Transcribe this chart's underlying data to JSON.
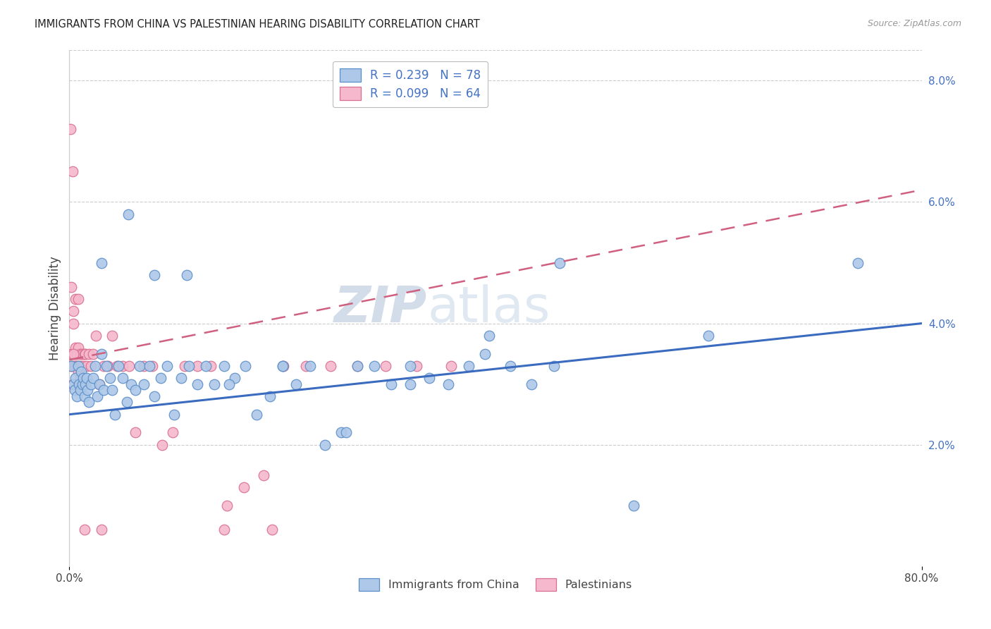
{
  "title": "IMMIGRANTS FROM CHINA VS PALESTINIAN HEARING DISABILITY CORRELATION CHART",
  "source": "Source: ZipAtlas.com",
  "ylabel": "Hearing Disability",
  "xlim": [
    0.0,
    0.8
  ],
  "ylim": [
    0.0,
    0.085
  ],
  "yticks_right": [
    0.02,
    0.04,
    0.06,
    0.08
  ],
  "yticklabels_right": [
    "2.0%",
    "4.0%",
    "6.0%",
    "8.0%"
  ],
  "color_china_face": "#adc8e8",
  "color_china_edge": "#5b8fc9",
  "color_pal_face": "#f5b8cc",
  "color_pal_edge": "#d97090",
  "color_blue_line": "#3a6bbf",
  "color_pink_line": "#d06080",
  "grid_color": "#cccccc",
  "blue_line_x0": 0.0,
  "blue_line_y0": 0.025,
  "blue_line_x1": 0.8,
  "blue_line_y1": 0.04,
  "pink_line_x0": 0.0,
  "pink_line_y0": 0.034,
  "pink_line_x1": 0.8,
  "pink_line_y1": 0.062,
  "legend1_text": "R = 0.239   N = 78",
  "legend2_text": "R = 0.099   N = 64",
  "legend_text_color": "#4472C4",
  "bottom_legend1": "Immigrants from China",
  "bottom_legend2": "Palestinians",
  "watermark_zip": "ZIP",
  "watermark_atlas": "atlas",
  "watermark_color": "#c8d8ea",
  "china_x": [
    0.002,
    0.004,
    0.005,
    0.006,
    0.007,
    0.008,
    0.009,
    0.01,
    0.011,
    0.012,
    0.013,
    0.014,
    0.015,
    0.016,
    0.017,
    0.018,
    0.02,
    0.022,
    0.024,
    0.026,
    0.028,
    0.03,
    0.032,
    0.035,
    0.038,
    0.04,
    0.043,
    0.046,
    0.05,
    0.054,
    0.058,
    0.062,
    0.066,
    0.07,
    0.075,
    0.08,
    0.086,
    0.092,
    0.098,
    0.105,
    0.112,
    0.12,
    0.128,
    0.136,
    0.145,
    0.155,
    0.165,
    0.176,
    0.188,
    0.2,
    0.213,
    0.226,
    0.24,
    0.255,
    0.27,
    0.286,
    0.302,
    0.32,
    0.338,
    0.356,
    0.375,
    0.394,
    0.414,
    0.434,
    0.455,
    0.03,
    0.055,
    0.08,
    0.11,
    0.15,
    0.2,
    0.26,
    0.32,
    0.39,
    0.46,
    0.53,
    0.6,
    0.74
  ],
  "china_y": [
    0.033,
    0.03,
    0.029,
    0.031,
    0.028,
    0.033,
    0.03,
    0.029,
    0.032,
    0.03,
    0.031,
    0.028,
    0.03,
    0.031,
    0.029,
    0.027,
    0.03,
    0.031,
    0.033,
    0.028,
    0.03,
    0.035,
    0.029,
    0.033,
    0.031,
    0.029,
    0.025,
    0.033,
    0.031,
    0.027,
    0.03,
    0.029,
    0.033,
    0.03,
    0.033,
    0.028,
    0.031,
    0.033,
    0.025,
    0.031,
    0.033,
    0.03,
    0.033,
    0.03,
    0.033,
    0.031,
    0.033,
    0.025,
    0.028,
    0.033,
    0.03,
    0.033,
    0.02,
    0.022,
    0.033,
    0.033,
    0.03,
    0.033,
    0.031,
    0.03,
    0.033,
    0.038,
    0.033,
    0.03,
    0.033,
    0.05,
    0.058,
    0.048,
    0.048,
    0.03,
    0.033,
    0.022,
    0.03,
    0.035,
    0.05,
    0.01,
    0.038,
    0.05
  ],
  "pal_x": [
    0.001,
    0.002,
    0.003,
    0.003,
    0.004,
    0.004,
    0.005,
    0.005,
    0.006,
    0.006,
    0.007,
    0.007,
    0.008,
    0.008,
    0.009,
    0.009,
    0.01,
    0.01,
    0.011,
    0.012,
    0.012,
    0.013,
    0.014,
    0.015,
    0.016,
    0.018,
    0.02,
    0.022,
    0.025,
    0.028,
    0.032,
    0.036,
    0.04,
    0.045,
    0.05,
    0.056,
    0.062,
    0.07,
    0.078,
    0.087,
    0.097,
    0.108,
    0.12,
    0.133,
    0.148,
    0.164,
    0.182,
    0.201,
    0.222,
    0.245,
    0.27,
    0.297,
    0.326,
    0.358,
    0.006,
    0.008,
    0.003,
    0.002,
    0.001,
    0.004,
    0.014,
    0.03,
    0.145,
    0.19
  ],
  "pal_y": [
    0.033,
    0.035,
    0.03,
    0.033,
    0.04,
    0.042,
    0.035,
    0.033,
    0.036,
    0.033,
    0.033,
    0.035,
    0.032,
    0.036,
    0.033,
    0.03,
    0.031,
    0.035,
    0.033,
    0.03,
    0.035,
    0.033,
    0.035,
    0.035,
    0.033,
    0.035,
    0.033,
    0.035,
    0.038,
    0.03,
    0.033,
    0.033,
    0.038,
    0.033,
    0.033,
    0.033,
    0.022,
    0.033,
    0.033,
    0.02,
    0.022,
    0.033,
    0.033,
    0.033,
    0.01,
    0.013,
    0.015,
    0.033,
    0.033,
    0.033,
    0.033,
    0.033,
    0.033,
    0.033,
    0.044,
    0.044,
    0.065,
    0.046,
    0.072,
    0.035,
    0.006,
    0.006,
    0.006,
    0.006
  ]
}
